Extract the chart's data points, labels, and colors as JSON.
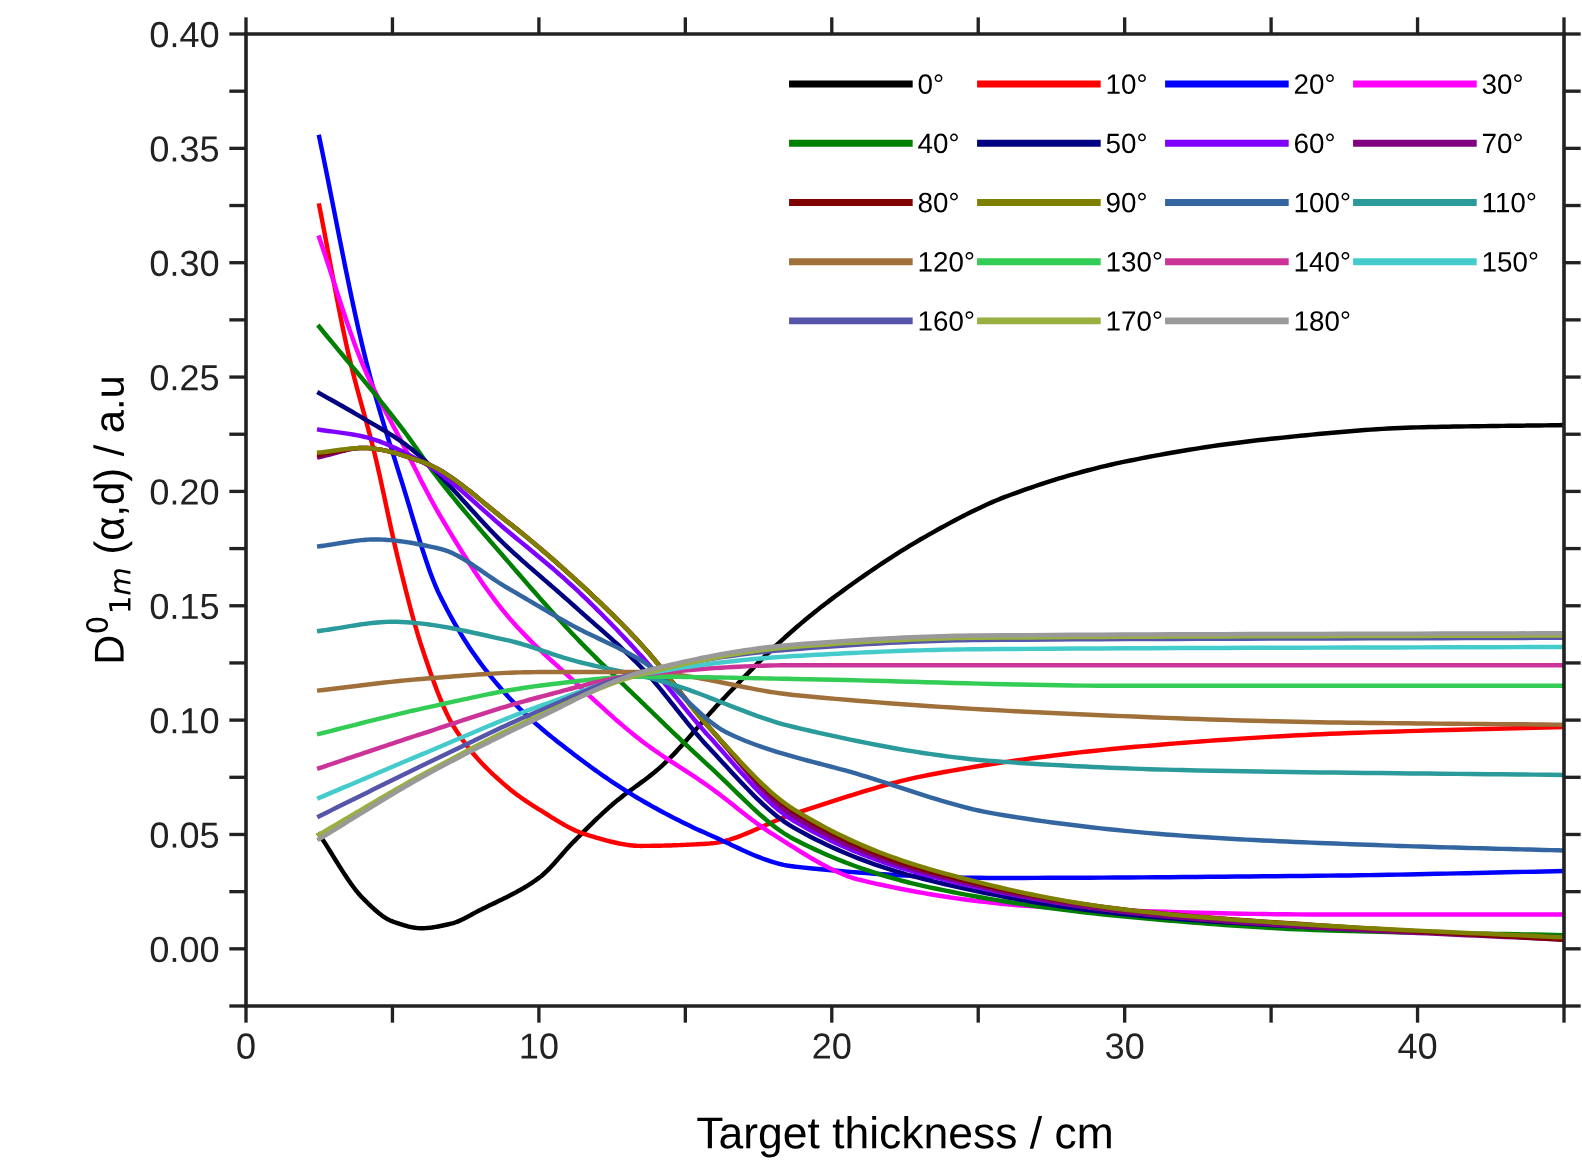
{
  "chart_data": {
    "type": "line",
    "xlabel": "Target thickness / cm",
    "ylabel": "D$^{0}$$_{1m}$ (α,d) / a.u",
    "xlim": [
      0,
      45
    ],
    "ylim": [
      -0.025,
      0.4
    ],
    "xticks": [
      0,
      {
        "value": 5,
        "label": null
      },
      10,
      {
        "value": 15,
        "label": null
      },
      20,
      {
        "value": 25,
        "label": null
      },
      30,
      {
        "value": 35,
        "label": null
      },
      40,
      {
        "value": 45,
        "label": null
      }
    ],
    "yticks": [
      {
        "value": -0.025,
        "label": null
      },
      {
        "value": 0,
        "label": "0.00"
      },
      {
        "value": 0.025,
        "label": null
      },
      {
        "value": 0.05,
        "label": "0.05"
      },
      {
        "value": 0.075,
        "label": null
      },
      {
        "value": 0.1,
        "label": "0.10"
      },
      {
        "value": 0.125,
        "label": null
      },
      {
        "value": 0.15,
        "label": "0.15"
      },
      {
        "value": 0.175,
        "label": null
      },
      {
        "value": 0.2,
        "label": "0.20"
      },
      {
        "value": 0.225,
        "label": null
      },
      {
        "value": 0.25,
        "label": "0.25"
      },
      {
        "value": 0.275,
        "label": null
      },
      {
        "value": 0.3,
        "label": "0.30"
      },
      {
        "value": 0.325,
        "label": null
      },
      {
        "value": 0.35,
        "label": "0.35"
      },
      {
        "value": 0.375,
        "label": null
      },
      {
        "value": 0.4,
        "label": "0.40"
      }
    ],
    "grid": false,
    "legend": "top right",
    "marker": "none",
    "line_style": "solid",
    "series": [
      {
        "name": "0°",
        "color": "#000000",
        "x": [
          2.5,
          4,
          5,
          6,
          7,
          8,
          10,
          11.2,
          12.5,
          14.2,
          16.2,
          18.3,
          20,
          23.3,
          26,
          30,
          35,
          40,
          45
        ],
        "values": [
          0.05,
          0.022,
          0.012,
          0.009,
          0.011,
          0.017,
          0.031,
          0.047,
          0.063,
          0.08,
          0.108,
          0.135,
          0.153,
          0.181,
          0.198,
          0.213,
          0.223,
          0.228,
          0.229
        ]
      },
      {
        "name": "10°",
        "color": "#ff0000",
        "x": [
          2.5,
          3.5,
          4.4,
          5.2,
          6,
          7.1,
          8.9,
          10,
          11.6,
          13.5,
          15.8,
          18.7,
          23.3,
          30.1,
          37,
          45
        ],
        "values": [
          0.325,
          0.26,
          0.216,
          0.17,
          0.132,
          0.097,
          0.071,
          0.061,
          0.05,
          0.045,
          0.046,
          0.059,
          0.076,
          0.088,
          0.094,
          0.097
        ]
      },
      {
        "name": "20°",
        "color": "#0000ff",
        "x": [
          2.5,
          4.1,
          5.3,
          6.6,
          8.9,
          11.2,
          13.5,
          15.8,
          18.7,
          25.6,
          37,
          45
        ],
        "values": [
          0.355,
          0.257,
          0.205,
          0.155,
          0.111,
          0.085,
          0.065,
          0.05,
          0.036,
          0.031,
          0.032,
          0.034
        ]
      },
      {
        "name": "30°",
        "color": "#ff00ff",
        "x": [
          2.5,
          4,
          5.3,
          6.6,
          8.9,
          11.2,
          13.5,
          15.8,
          18,
          21,
          27.7,
          37,
          45
        ],
        "values": [
          0.311,
          0.255,
          0.222,
          0.19,
          0.146,
          0.117,
          0.091,
          0.071,
          0.05,
          0.03,
          0.018,
          0.015,
          0.015
        ]
      },
      {
        "name": "40°",
        "color": "#008000",
        "x": [
          2.5,
          5.3,
          6.6,
          8.9,
          11.2,
          13.5,
          15.8,
          18.7,
          23.3,
          30.1,
          37,
          45
        ],
        "values": [
          0.272,
          0.228,
          0.205,
          0.17,
          0.137,
          0.108,
          0.08,
          0.048,
          0.027,
          0.014,
          0.008,
          0.006
        ]
      },
      {
        "name": "50°",
        "color": "#000080",
        "x": [
          2.5,
          4,
          5.5,
          8.9,
          11.2,
          13.5,
          15.8,
          18.7,
          23.3,
          30.1,
          37,
          45
        ],
        "values": [
          0.243,
          0.232,
          0.22,
          0.176,
          0.15,
          0.123,
          0.088,
          0.053,
          0.03,
          0.015,
          0.009,
          0.005
        ]
      },
      {
        "name": "60°",
        "color": "#8000ff",
        "x": [
          2.5,
          4,
          6,
          8.9,
          11.2,
          13.5,
          15.8,
          18.7,
          23.3,
          30.1,
          37
        ],
        "values": [
          0.227,
          0.224,
          0.213,
          0.183,
          0.158,
          0.128,
          0.093,
          0.056,
          0.032,
          0.016,
          0.009
        ]
      },
      {
        "name": "70°",
        "color": "#800080",
        "x": [
          2.5,
          4,
          6,
          8.9,
          11.2,
          13.5,
          15.8,
          18.7,
          23.3,
          30.1,
          37,
          45
        ],
        "values": [
          0.215,
          0.219,
          0.213,
          0.187,
          0.162,
          0.133,
          0.097,
          0.058,
          0.033,
          0.016,
          0.009,
          0.004
        ]
      },
      {
        "name": "80°",
        "color": "#800000",
        "x": [
          2.5,
          4,
          6,
          8.9,
          11.2,
          13.5,
          15.8,
          18.7,
          23.3,
          30.1,
          37,
          45
        ],
        "values": [
          0.216,
          0.219,
          0.213,
          0.187,
          0.162,
          0.133,
          0.097,
          0.06,
          0.034,
          0.017,
          0.01,
          0.004
        ]
      },
      {
        "name": "90°",
        "color": "#808000",
        "x": [
          2.5,
          4,
          6,
          8.9,
          11.2,
          13.5,
          15.8,
          18.7,
          23.3,
          30.1,
          37,
          45
        ],
        "values": [
          0.217,
          0.219,
          0.213,
          0.187,
          0.162,
          0.133,
          0.097,
          0.061,
          0.035,
          0.017,
          0.01,
          0.005
        ]
      },
      {
        "name": "100°",
        "color": "#3366a0",
        "x": [
          2.5,
          4.4,
          6.6,
          8.9,
          11.2,
          13.5,
          16.5,
          21,
          25.6,
          32.5,
          39.4,
          45
        ],
        "values": [
          0.176,
          0.179,
          0.175,
          0.158,
          0.141,
          0.126,
          0.094,
          0.076,
          0.059,
          0.049,
          0.045,
          0.043
        ]
      },
      {
        "name": "110°",
        "color": "#2a9a9a",
        "x": [
          2.5,
          5,
          8.9,
          11.2,
          14.2,
          18.7,
          25.6,
          32.5,
          45
        ],
        "values": [
          0.139,
          0.143,
          0.135,
          0.126,
          0.117,
          0.097,
          0.082,
          0.078,
          0.076
        ]
      },
      {
        "name": "120°",
        "color": "#a0703a",
        "x": [
          2.5,
          6,
          10,
          13.5,
          18.7,
          27.7,
          37,
          45
        ],
        "values": [
          0.113,
          0.118,
          0.121,
          0.121,
          0.111,
          0.103,
          0.099,
          0.098
        ]
      },
      {
        "name": "130°",
        "color": "#33cc55",
        "x": [
          2.5,
          6,
          10,
          13.5,
          18.7,
          30,
          45
        ],
        "values": [
          0.094,
          0.105,
          0.115,
          0.119,
          0.118,
          0.115,
          0.115
        ]
      },
      {
        "name": "140°",
        "color": "#cc3399",
        "x": [
          2.5,
          6,
          10,
          13.5,
          18.7,
          30,
          45
        ],
        "values": [
          0.079,
          0.094,
          0.11,
          0.12,
          0.124,
          0.124,
          0.124
        ]
      },
      {
        "name": "150°",
        "color": "#44cccc",
        "x": [
          2.5,
          6,
          10,
          13.5,
          18.7,
          25,
          45
        ],
        "values": [
          0.066,
          0.085,
          0.106,
          0.12,
          0.128,
          0.131,
          0.132
        ]
      },
      {
        "name": "160°",
        "color": "#5555aa",
        "x": [
          2.5,
          6,
          10,
          13.5,
          18.7,
          25,
          45
        ],
        "values": [
          0.058,
          0.08,
          0.104,
          0.121,
          0.131,
          0.135,
          0.136
        ]
      },
      {
        "name": "170°",
        "color": "#99b040",
        "x": [
          2.5,
          6,
          10,
          13.5,
          18.7,
          25,
          45
        ],
        "values": [
          0.05,
          0.076,
          0.102,
          0.12,
          0.132,
          0.136,
          0.137
        ]
      },
      {
        "name": "180°",
        "color": "#999999",
        "x": [
          2.5,
          6,
          10,
          13.5,
          18.7,
          25,
          45
        ],
        "values": [
          0.048,
          0.075,
          0.101,
          0.121,
          0.133,
          0.137,
          0.138
        ]
      }
    ]
  }
}
